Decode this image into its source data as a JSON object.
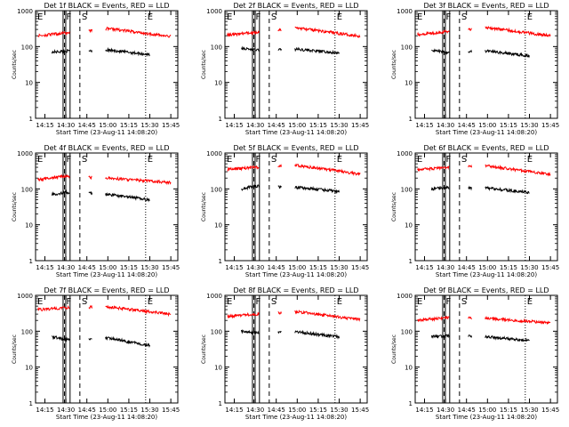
{
  "colors": {
    "background": "#ffffff",
    "axes": "#000000",
    "events": "#000000",
    "lld": "#ff0000"
  },
  "chart_data": [
    {
      "type": "line",
      "title": "Det 1f BLACK = Events, RED = LLD",
      "xlabel": "Start Time (23-Aug-11 14:08:20)",
      "ylabel": "Counts/sec",
      "yscale": "log",
      "ylim": [
        1,
        1000
      ],
      "yticks": [
        "1",
        "10",
        "100",
        "1000"
      ],
      "xticks": [
        "14:15",
        "14:30",
        "14:45",
        "15:00",
        "15:15",
        "15:30",
        "15:45"
      ],
      "xlim": [
        "14:08:20",
        "15:50:00"
      ],
      "markers": [
        {
          "label": "E",
          "time": "14:08:20"
        },
        {
          "label": "F",
          "time": "14:29"
        },
        {
          "label": "S",
          "time": "14:40"
        },
        {
          "label": "E",
          "time": "15:27"
        }
      ],
      "series": [
        {
          "name": "Events",
          "color": "#000000",
          "values": [
            {
              "x": "14:20",
              "y": 70
            },
            {
              "x": "14:30",
              "y": 75
            },
            {
              "x": "15:00",
              "y": 80
            },
            {
              "x": "15:30",
              "y": 60
            }
          ]
        },
        {
          "name": "LLD",
          "color": "#ff0000",
          "values": [
            {
              "x": "14:10",
              "y": 200
            },
            {
              "x": "14:30",
              "y": 240
            },
            {
              "x": "15:00",
              "y": 320
            },
            {
              "x": "15:45",
              "y": 190
            }
          ]
        }
      ]
    },
    {
      "type": "line",
      "title": "Det 2f BLACK = Events, RED = LLD",
      "xlabel": "Start Time (23-Aug-11 14:08:20)",
      "ylabel": "Counts/sec",
      "yscale": "log",
      "ylim": [
        1,
        1000
      ],
      "yticks": [
        "1",
        "10",
        "100",
        "1000"
      ],
      "xticks": [
        "14:15",
        "14:30",
        "14:45",
        "15:00",
        "15:15",
        "15:30",
        "15:45"
      ],
      "xlim": [
        "14:08:20",
        "15:50:00"
      ],
      "markers": [
        {
          "label": "E",
          "time": "14:08:20"
        },
        {
          "label": "F",
          "time": "14:29"
        },
        {
          "label": "S",
          "time": "14:40"
        },
        {
          "label": "E",
          "time": "15:27"
        }
      ],
      "series": [
        {
          "name": "Events",
          "color": "#000000",
          "values": [
            {
              "x": "14:20",
              "y": 90
            },
            {
              "x": "14:30",
              "y": 80
            },
            {
              "x": "15:00",
              "y": 85
            },
            {
              "x": "15:30",
              "y": 65
            }
          ]
        },
        {
          "name": "LLD",
          "color": "#ff0000",
          "values": [
            {
              "x": "14:10",
              "y": 210
            },
            {
              "x": "14:30",
              "y": 250
            },
            {
              "x": "15:00",
              "y": 330
            },
            {
              "x": "15:45",
              "y": 195
            }
          ]
        }
      ]
    },
    {
      "type": "line",
      "title": "Det 3f BLACK = Events, RED = LLD",
      "xlabel": "Start Time (23-Aug-11 14:08:20)",
      "ylabel": "Counts/sec",
      "yscale": "log",
      "ylim": [
        1,
        1000
      ],
      "yticks": [
        "1",
        "10",
        "100",
        "1000"
      ],
      "xticks": [
        "14:15",
        "14:30",
        "14:45",
        "15:00",
        "15:15",
        "15:30",
        "15:45"
      ],
      "xlim": [
        "14:08:20",
        "15:50:00"
      ],
      "markers": [
        {
          "label": "E",
          "time": "14:08:20"
        },
        {
          "label": "F",
          "time": "14:29"
        },
        {
          "label": "S",
          "time": "14:40"
        },
        {
          "label": "E",
          "time": "15:27"
        }
      ],
      "series": [
        {
          "name": "Events",
          "color": "#000000",
          "values": [
            {
              "x": "14:20",
              "y": 80
            },
            {
              "x": "14:30",
              "y": 70
            },
            {
              "x": "15:00",
              "y": 75
            },
            {
              "x": "15:30",
              "y": 55
            }
          ]
        },
        {
          "name": "LLD",
          "color": "#ff0000",
          "values": [
            {
              "x": "14:10",
              "y": 220
            },
            {
              "x": "14:30",
              "y": 260
            },
            {
              "x": "15:00",
              "y": 340
            },
            {
              "x": "15:45",
              "y": 200
            }
          ]
        }
      ]
    },
    {
      "type": "line",
      "title": "Det 4f BLACK = Events, RED = LLD",
      "xlabel": "Start Time (23-Aug-11 14:08:20)",
      "ylabel": "Counts/sec",
      "yscale": "log",
      "ylim": [
        1,
        1000
      ],
      "yticks": [
        "1",
        "10",
        "100",
        "1000"
      ],
      "xticks": [
        "14:15",
        "14:30",
        "14:45",
        "15:00",
        "15:15",
        "15:30",
        "15:45"
      ],
      "xlim": [
        "14:08:20",
        "15:50:00"
      ],
      "markers": [
        {
          "label": "E",
          "time": "14:08:20"
        },
        {
          "label": "F",
          "time": "14:29"
        },
        {
          "label": "S",
          "time": "14:40"
        },
        {
          "label": "E",
          "time": "15:27"
        }
      ],
      "series": [
        {
          "name": "Events",
          "color": "#000000",
          "values": [
            {
              "x": "14:20",
              "y": 70
            },
            {
              "x": "14:30",
              "y": 80
            },
            {
              "x": "15:00",
              "y": 70
            },
            {
              "x": "15:30",
              "y": 50
            }
          ]
        },
        {
          "name": "LLD",
          "color": "#ff0000",
          "values": [
            {
              "x": "14:10",
              "y": 180
            },
            {
              "x": "14:30",
              "y": 230
            },
            {
              "x": "15:00",
              "y": 200
            },
            {
              "x": "15:45",
              "y": 150
            }
          ]
        }
      ]
    },
    {
      "type": "line",
      "title": "Det 5f BLACK = Events, RED = LLD",
      "xlabel": "Start Time (23-Aug-11 14:08:20)",
      "ylabel": "Counts/sec",
      "yscale": "log",
      "ylim": [
        1,
        1000
      ],
      "yticks": [
        "1",
        "10",
        "100",
        "1000"
      ],
      "xticks": [
        "14:15",
        "14:30",
        "14:45",
        "15:00",
        "15:15",
        "15:30",
        "15:45"
      ],
      "xlim": [
        "14:08:20",
        "15:50:00"
      ],
      "markers": [
        {
          "label": "E",
          "time": "14:08:20"
        },
        {
          "label": "F",
          "time": "14:29"
        },
        {
          "label": "S",
          "time": "14:40"
        },
        {
          "label": "E",
          "time": "15:27"
        }
      ],
      "series": [
        {
          "name": "Events",
          "color": "#000000",
          "values": [
            {
              "x": "14:20",
              "y": 100
            },
            {
              "x": "14:30",
              "y": 120
            },
            {
              "x": "15:00",
              "y": 110
            },
            {
              "x": "15:30",
              "y": 85
            }
          ]
        },
        {
          "name": "LLD",
          "color": "#ff0000",
          "values": [
            {
              "x": "14:10",
              "y": 350
            },
            {
              "x": "14:30",
              "y": 400
            },
            {
              "x": "15:00",
              "y": 450
            },
            {
              "x": "15:45",
              "y": 260
            }
          ]
        }
      ]
    },
    {
      "type": "line",
      "title": "Det 6f BLACK = Events, RED = LLD",
      "xlabel": "Start Time (23-Aug-11 14:08:20)",
      "ylabel": "Counts/sec",
      "yscale": "log",
      "ylim": [
        1,
        1000
      ],
      "yticks": [
        "1",
        "10",
        "100",
        "1000"
      ],
      "xticks": [
        "14:15",
        "14:30",
        "14:45",
        "15:00",
        "15:15",
        "15:30",
        "15:45"
      ],
      "xlim": [
        "14:08:20",
        "15:50:00"
      ],
      "markers": [
        {
          "label": "E",
          "time": "14:08:20"
        },
        {
          "label": "F",
          "time": "14:29"
        },
        {
          "label": "S",
          "time": "14:40"
        },
        {
          "label": "E",
          "time": "15:27"
        }
      ],
      "series": [
        {
          "name": "Events",
          "color": "#000000",
          "values": [
            {
              "x": "14:20",
              "y": 100
            },
            {
              "x": "14:30",
              "y": 110
            },
            {
              "x": "15:00",
              "y": 105
            },
            {
              "x": "15:30",
              "y": 80
            }
          ]
        },
        {
          "name": "LLD",
          "color": "#ff0000",
          "values": [
            {
              "x": "14:10",
              "y": 340
            },
            {
              "x": "14:30",
              "y": 390
            },
            {
              "x": "15:00",
              "y": 440
            },
            {
              "x": "15:45",
              "y": 250
            }
          ]
        }
      ]
    },
    {
      "type": "line",
      "title": "Det 7f BLACK = Events, RED = LLD",
      "xlabel": "Start Time (23-Aug-11 14:08:20)",
      "ylabel": "Counts/sec",
      "yscale": "log",
      "ylim": [
        1,
        1000
      ],
      "yticks": [
        "1",
        "10",
        "100",
        "1000"
      ],
      "xticks": [
        "14:15",
        "14:30",
        "14:45",
        "15:00",
        "15:15",
        "15:30",
        "15:45"
      ],
      "xlim": [
        "14:08:20",
        "15:50:00"
      ],
      "markers": [
        {
          "label": "E",
          "time": "14:08:20"
        },
        {
          "label": "F",
          "time": "14:29"
        },
        {
          "label": "S",
          "time": "14:40"
        },
        {
          "label": "E",
          "time": "15:27"
        }
      ],
      "series": [
        {
          "name": "Events",
          "color": "#000000",
          "values": [
            {
              "x": "14:20",
              "y": 70
            },
            {
              "x": "14:30",
              "y": 60
            },
            {
              "x": "15:00",
              "y": 65
            },
            {
              "x": "15:30",
              "y": 40
            }
          ]
        },
        {
          "name": "LLD",
          "color": "#ff0000",
          "values": [
            {
              "x": "14:10",
              "y": 400
            },
            {
              "x": "14:30",
              "y": 450
            },
            {
              "x": "15:00",
              "y": 480
            },
            {
              "x": "15:45",
              "y": 300
            }
          ]
        }
      ]
    },
    {
      "type": "line",
      "title": "Det 8f BLACK = Events, RED = LLD",
      "xlabel": "Start Time (23-Aug-11 14:08:20)",
      "ylabel": "Counts/sec",
      "yscale": "log",
      "ylim": [
        1,
        1000
      ],
      "yticks": [
        "1",
        "10",
        "100",
        "1000"
      ],
      "xticks": [
        "14:15",
        "14:30",
        "14:45",
        "15:00",
        "15:15",
        "15:30",
        "15:45"
      ],
      "xlim": [
        "14:08:20",
        "15:50:00"
      ],
      "markers": [
        {
          "label": "E",
          "time": "14:08:20"
        },
        {
          "label": "F",
          "time": "14:29"
        },
        {
          "label": "S",
          "time": "14:40"
        },
        {
          "label": "E",
          "time": "15:27"
        }
      ],
      "series": [
        {
          "name": "Events",
          "color": "#000000",
          "values": [
            {
              "x": "14:20",
              "y": 100
            },
            {
              "x": "14:30",
              "y": 90
            },
            {
              "x": "15:00",
              "y": 95
            },
            {
              "x": "15:30",
              "y": 70
            }
          ]
        },
        {
          "name": "LLD",
          "color": "#ff0000",
          "values": [
            {
              "x": "14:10",
              "y": 260
            },
            {
              "x": "14:30",
              "y": 300
            },
            {
              "x": "15:00",
              "y": 350
            },
            {
              "x": "15:45",
              "y": 210
            }
          ]
        }
      ]
    },
    {
      "type": "line",
      "title": "Det 9f BLACK = Events, RED = LLD",
      "xlabel": "Start Time (23-Aug-11 14:08:20)",
      "ylabel": "Counts/sec",
      "yscale": "log",
      "ylim": [
        1,
        1000
      ],
      "yticks": [
        "1",
        "10",
        "100",
        "1000"
      ],
      "xticks": [
        "14:15",
        "14:30",
        "14:45",
        "15:00",
        "15:15",
        "15:30",
        "15:45"
      ],
      "xlim": [
        "14:08:20",
        "15:50:00"
      ],
      "markers": [
        {
          "label": "E",
          "time": "14:08:20"
        },
        {
          "label": "F",
          "time": "14:29"
        },
        {
          "label": "S",
          "time": "14:40"
        },
        {
          "label": "E",
          "time": "15:27"
        }
      ],
      "series": [
        {
          "name": "Events",
          "color": "#000000",
          "values": [
            {
              "x": "14:20",
              "y": 70
            },
            {
              "x": "14:30",
              "y": 75
            },
            {
              "x": "15:00",
              "y": 70
            },
            {
              "x": "15:30",
              "y": 55
            }
          ]
        },
        {
          "name": "LLD",
          "color": "#ff0000",
          "values": [
            {
              "x": "14:10",
              "y": 200
            },
            {
              "x": "14:30",
              "y": 240
            },
            {
              "x": "15:00",
              "y": 230
            },
            {
              "x": "15:45",
              "y": 170
            }
          ]
        }
      ]
    }
  ]
}
